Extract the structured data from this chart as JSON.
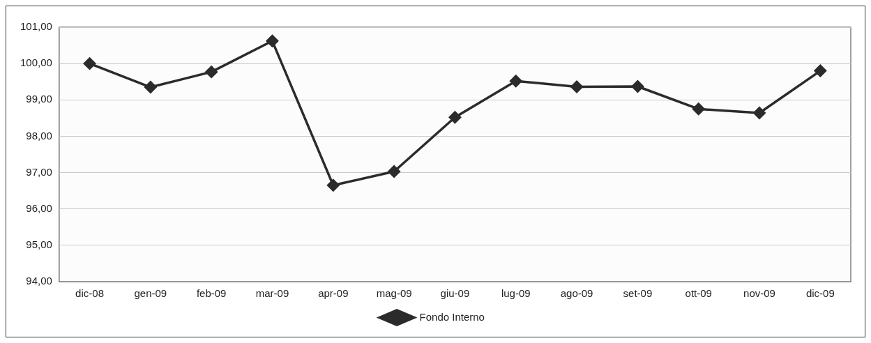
{
  "chart_data": {
    "type": "line",
    "categories": [
      "dic-08",
      "gen-09",
      "feb-09",
      "mar-09",
      "apr-09",
      "mag-09",
      "giu-09",
      "lug-09",
      "ago-09",
      "set-09",
      "ott-09",
      "nov-09",
      "dic-09"
    ],
    "series": [
      {
        "name": "Fondo Interno",
        "color": "#2b2b2b",
        "values": [
          100.0,
          99.35,
          99.77,
          100.62,
          96.65,
          97.03,
          98.52,
          99.52,
          99.36,
          99.37,
          98.75,
          98.64,
          99.8
        ]
      }
    ],
    "ylim": [
      94,
      101
    ],
    "yticks": [
      {
        "value": 94,
        "label": "94,00"
      },
      {
        "value": 95,
        "label": "95,00"
      },
      {
        "value": 96,
        "label": "96,00"
      },
      {
        "value": 97,
        "label": "97,00"
      },
      {
        "value": 98,
        "label": "98,00"
      },
      {
        "value": 99,
        "label": "99,00"
      },
      {
        "value": 100,
        "label": "100,00"
      },
      {
        "value": 101,
        "label": "101,00"
      }
    ],
    "grid": "y",
    "legend": "bottom",
    "marker": "diamond",
    "line_style": "solid"
  }
}
